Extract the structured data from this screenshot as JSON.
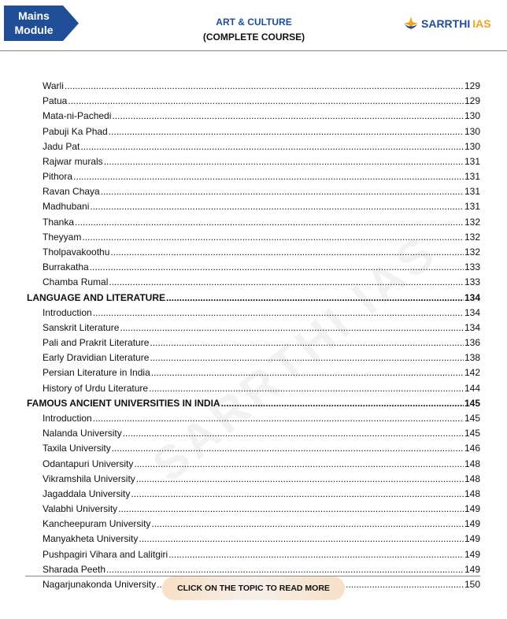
{
  "header": {
    "badge_line1": "Mains",
    "badge_line2": "Module",
    "title_line1": "ART & CULTURE",
    "title_line2": "(COMPLETE COURSE)",
    "logo_main": "SARRTHI",
    "logo_accent": "IAS"
  },
  "watermark": "SARRTHI IAS",
  "toc": [
    {
      "label": "Warli",
      "page": "129",
      "level": 2
    },
    {
      "label": "Patua",
      "page": "129",
      "level": 2
    },
    {
      "label": "Mata-ni-Pachedi",
      "page": "130",
      "level": 2
    },
    {
      "label": "Pabuji Ka Phad",
      "page": "130",
      "level": 2
    },
    {
      "label": "Jadu Pat",
      "page": "130",
      "level": 2
    },
    {
      "label": "Rajwar murals",
      "page": "131",
      "level": 2
    },
    {
      "label": "Pithora",
      "page": "131",
      "level": 2
    },
    {
      "label": "Ravan Chaya",
      "page": "131",
      "level": 2
    },
    {
      "label": "Madhubani",
      "page": "131",
      "level": 2
    },
    {
      "label": "Thanka",
      "page": "132",
      "level": 2
    },
    {
      "label": "Theyyam",
      "page": "132",
      "level": 2
    },
    {
      "label": "Tholpavakoothu",
      "page": "132",
      "level": 2
    },
    {
      "label": "Burrakatha",
      "page": "133",
      "level": 2
    },
    {
      "label": "Chamba Rumal",
      "page": "133",
      "level": 2
    },
    {
      "label": "LANGUAGE AND LITERATURE",
      "page": "134",
      "level": 1
    },
    {
      "label": "Introduction",
      "page": "134",
      "level": 2
    },
    {
      "label": "Sanskrit Literature",
      "page": "134",
      "level": 2
    },
    {
      "label": "Pali and Prakrit Literature",
      "page": "136",
      "level": 2
    },
    {
      "label": "Early Dravidian Literature",
      "page": "138",
      "level": 2
    },
    {
      "label": "Persian Literature in India",
      "page": "142",
      "level": 2
    },
    {
      "label": "History of Urdu Literature",
      "page": "144",
      "level": 2
    },
    {
      "label": "FAMOUS ANCIENT UNIVERSITIES IN INDIA",
      "page": "145",
      "level": 1
    },
    {
      "label": "Introduction",
      "page": "145",
      "level": 2
    },
    {
      "label": "Nalanda University",
      "page": "145",
      "level": 2
    },
    {
      "label": "Taxila University",
      "page": "146",
      "level": 2
    },
    {
      "label": "Odantapuri University",
      "page": "148",
      "level": 2
    },
    {
      "label": "Vikramshila University",
      "page": "148",
      "level": 2
    },
    {
      "label": "Jagaddala University",
      "page": "148",
      "level": 2
    },
    {
      "label": "Valabhi University",
      "page": "149",
      "level": 2
    },
    {
      "label": "Kancheepuram University",
      "page": "149",
      "level": 2
    },
    {
      "label": "Manyakheta University",
      "page": "149",
      "level": 2
    },
    {
      "label": "Pushpagiri Vihara and Lalitgiri",
      "page": "149",
      "level": 2
    },
    {
      "label": "Sharada Peeth",
      "page": "149",
      "level": 2
    },
    {
      "label": "Nagarjunakonda University",
      "page": "150",
      "level": 2
    }
  ],
  "footer": {
    "cta_label": "CLICK ON THE TOPIC TO READ MORE"
  },
  "colors": {
    "badge": "#1f4e96",
    "title": "#1f4e96",
    "logo_accent": "#f3a21b"
  }
}
